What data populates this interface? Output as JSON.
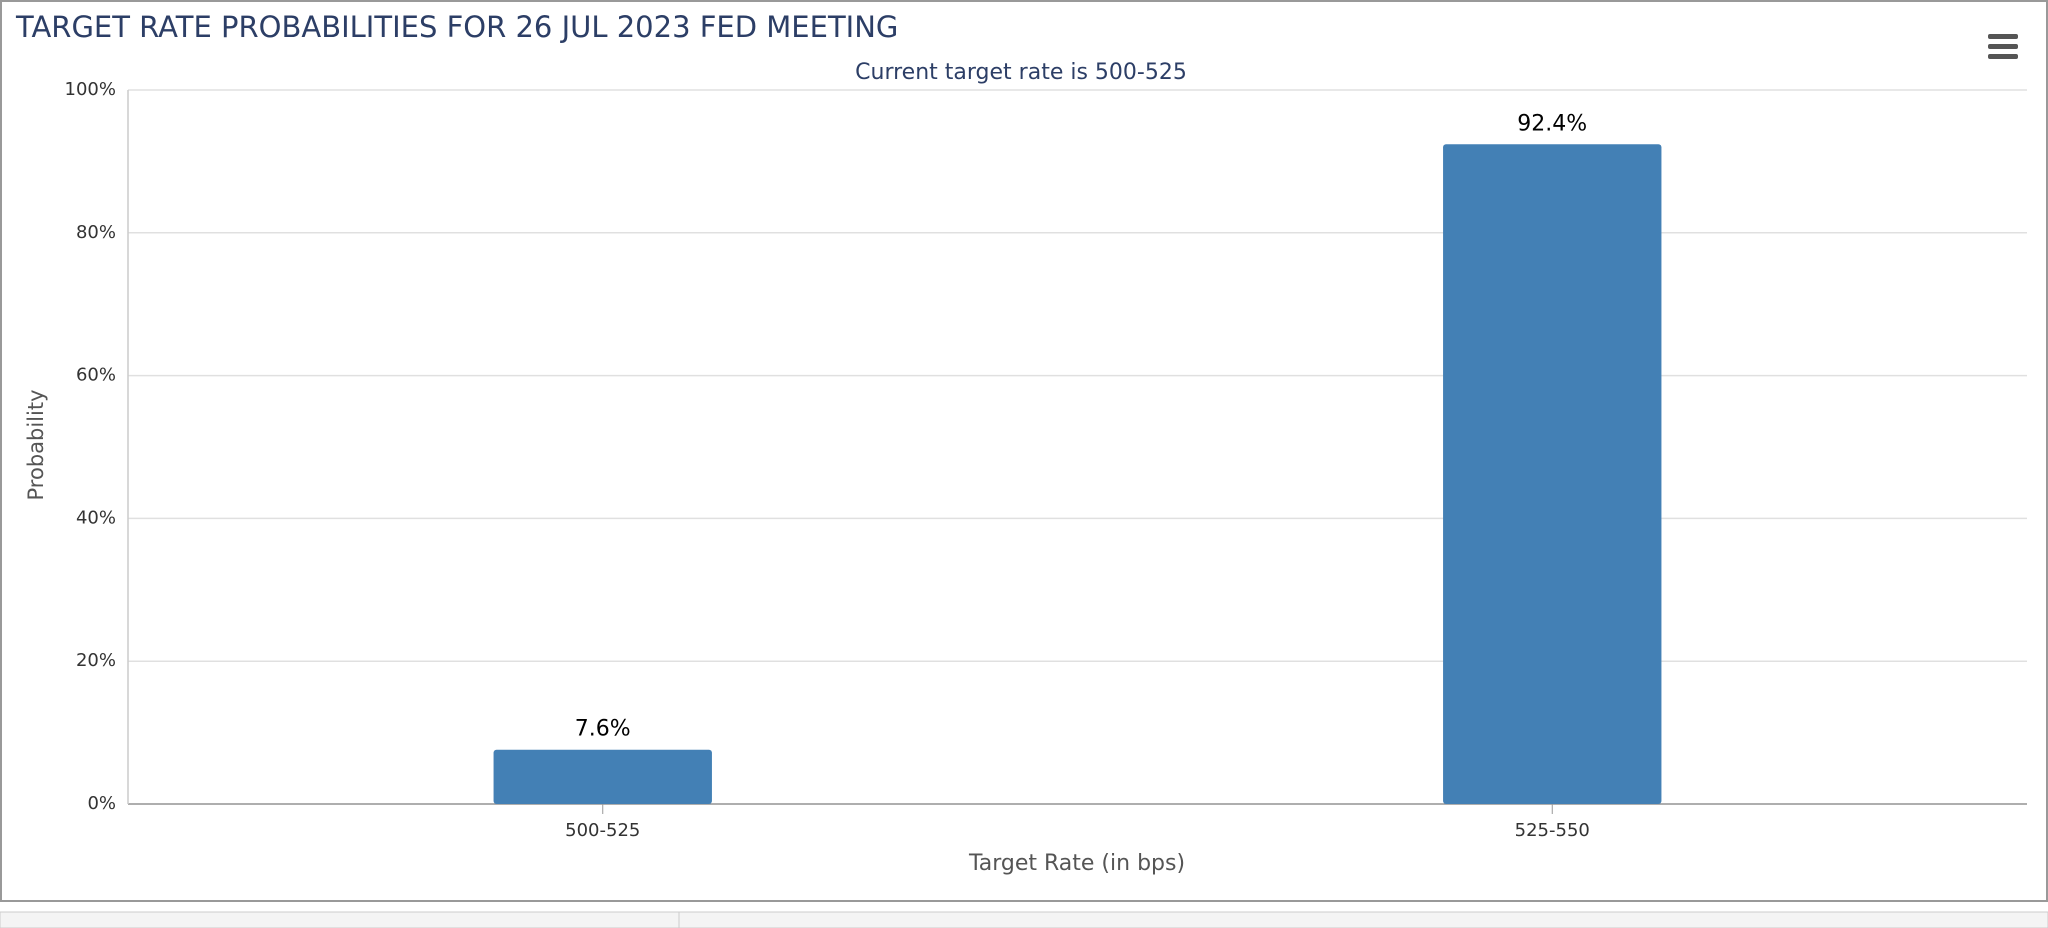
{
  "chart_data": {
    "type": "bar",
    "title": "TARGET RATE PROBABILITIES FOR 26 JUL 2023 FED MEETING",
    "subtitle": "Current target rate is 500-525",
    "x_label": "Target Rate (in bps)",
    "y_label": "Probability",
    "categories": [
      "500-525",
      "525-550"
    ],
    "values": [
      7.6,
      92.4
    ],
    "value_labels": [
      "7.6%",
      "92.4%"
    ],
    "color": "#4380b5",
    "ylim": [
      0,
      100
    ],
    "yticks": [
      {
        "value": 0,
        "label": "0%"
      },
      {
        "value": 20,
        "label": "20%"
      },
      {
        "value": 40,
        "label": "40%"
      },
      {
        "value": 60,
        "label": "60%"
      },
      {
        "value": 80,
        "label": "80%"
      },
      {
        "value": 100,
        "label": "100%"
      }
    ],
    "grid": true
  }
}
